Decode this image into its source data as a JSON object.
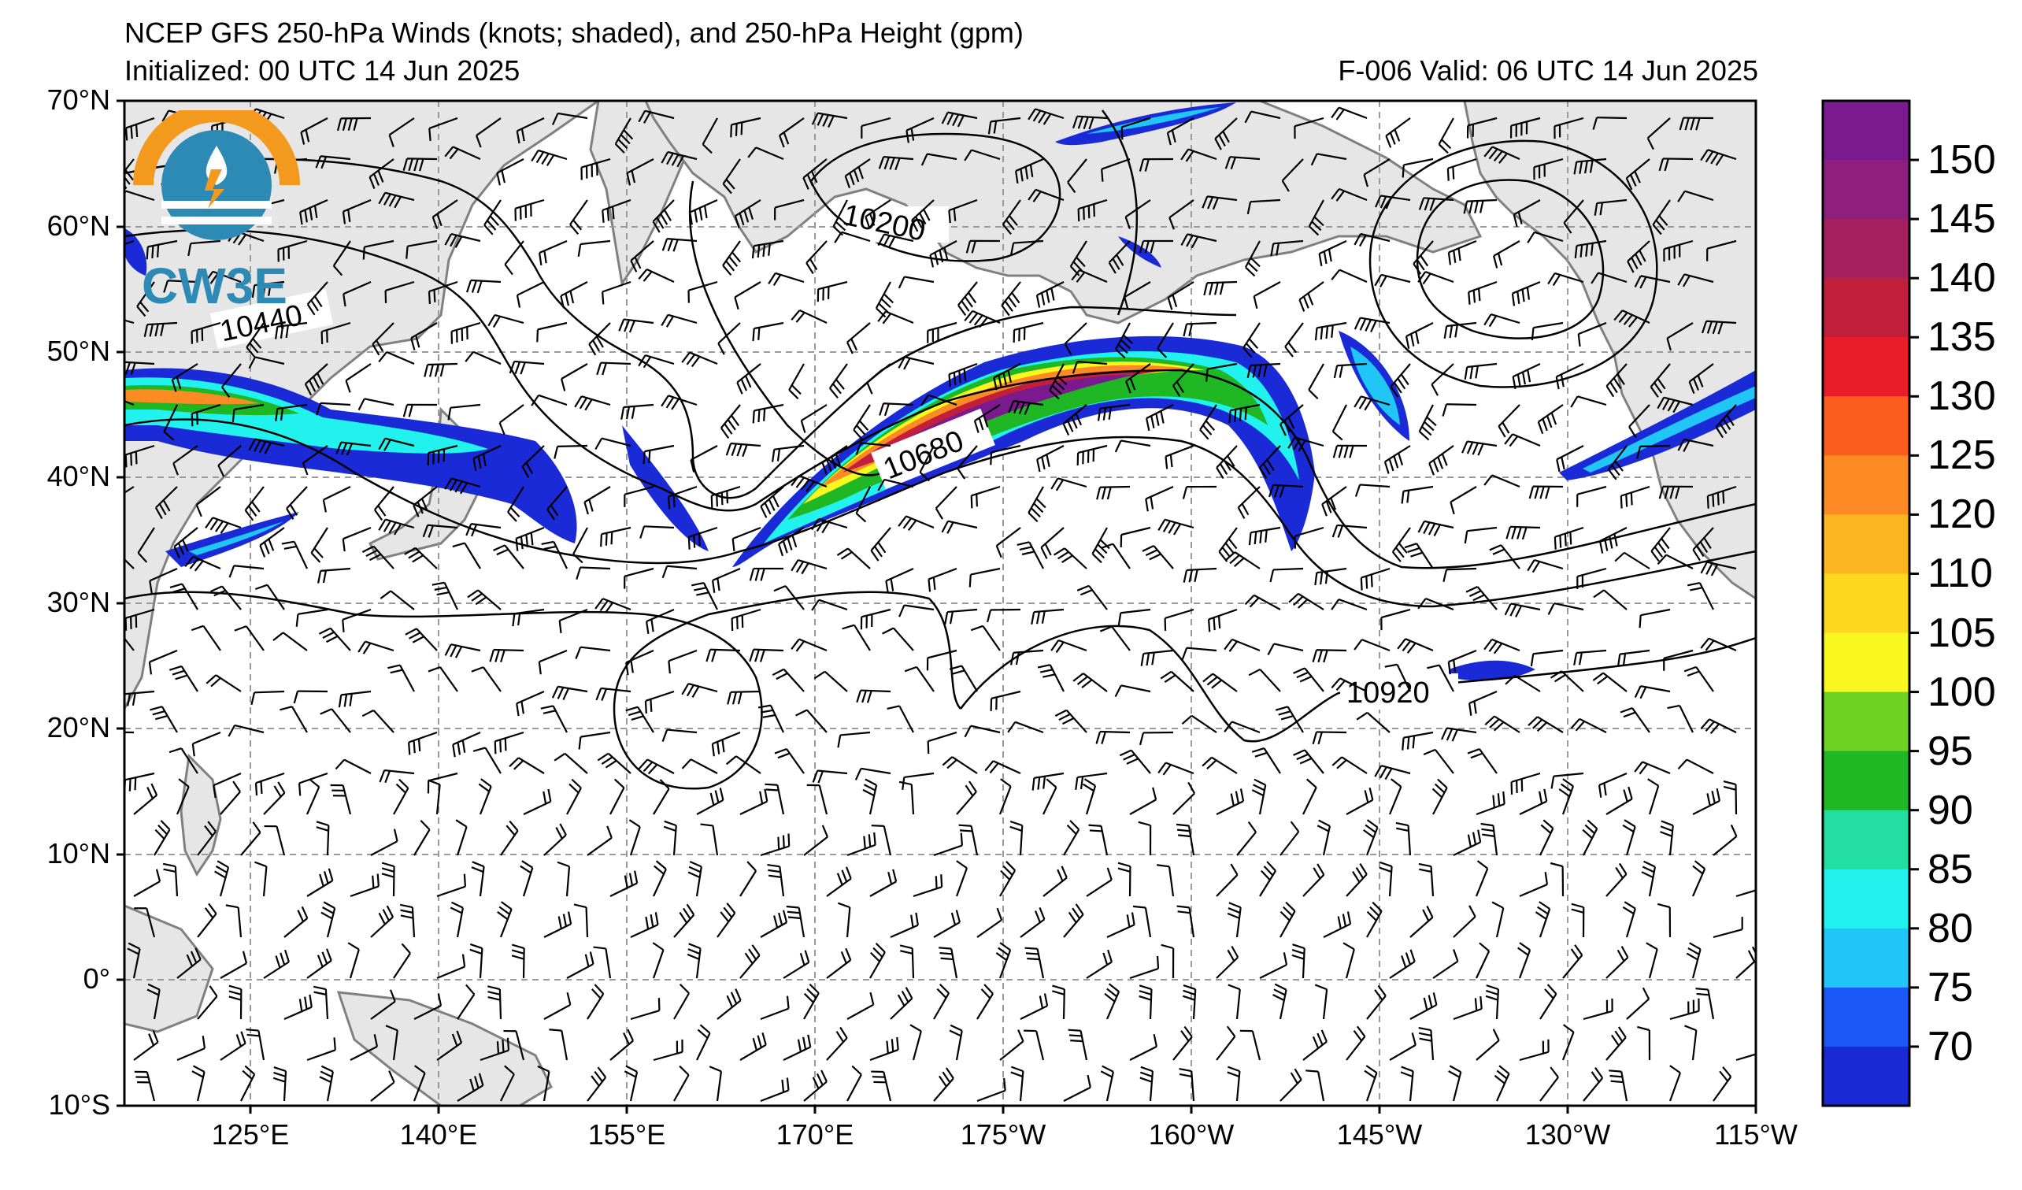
{
  "header": {
    "title": "NCEP GFS 250-hPa Winds (knots; shaded), and 250-hPa Height (gpm)",
    "initialized": "Initialized: 00 UTC 14 Jun 2025",
    "valid": "F-006  Valid: 06 UTC 14 Jun 2025"
  },
  "logo": {
    "text": "CW3E",
    "icon": "cw3e-logo-icon"
  },
  "axes": {
    "lat_labels": [
      "70°N",
      "60°N",
      "50°N",
      "40°N",
      "30°N",
      "20°N",
      "10°N",
      "0°",
      "10°S"
    ],
    "lon_labels": [
      "125°E",
      "140°E",
      "155°E",
      "170°E",
      "175°W",
      "160°W",
      "145°W",
      "130°W",
      "115°W"
    ]
  },
  "contour_labels": [
    "10200",
    "10440",
    "10680",
    "10920"
  ],
  "colorbar": {
    "labels": [
      "150",
      "145",
      "140",
      "135",
      "130",
      "125",
      "120",
      "110",
      "105",
      "100",
      "95",
      "90",
      "85",
      "80",
      "75",
      "70"
    ],
    "colors": [
      "#7a1a8e",
      "#8e1f7e",
      "#a4205f",
      "#c21f3c",
      "#ec1d2a",
      "#fd5c1f",
      "#fb8b22",
      "#fbb51e",
      "#fbd71d",
      "#f8f720",
      "#6ed223",
      "#1fb723",
      "#22dea0",
      "#22f2ee",
      "#1fc6f6",
      "#1a58f7",
      "#1a2ad6"
    ]
  },
  "map": {
    "land_color": "#e6e6e6",
    "coast_color": "#808080",
    "grid_color": "#9a9a9a"
  }
}
